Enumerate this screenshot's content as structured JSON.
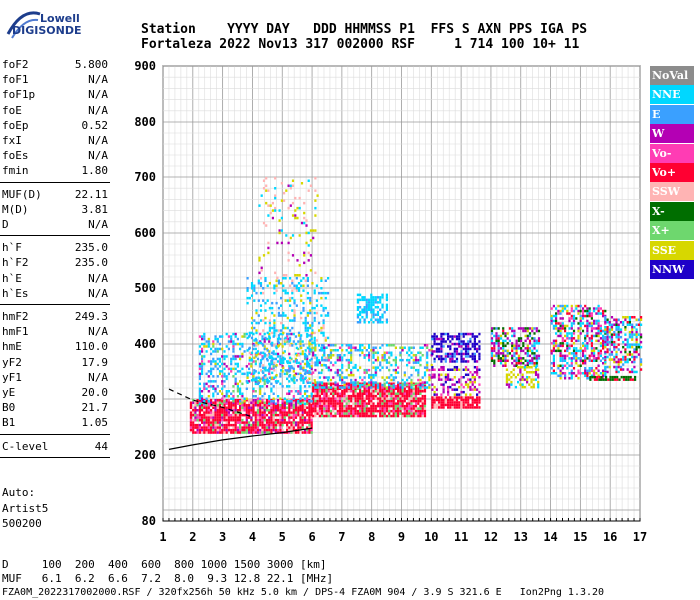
{
  "logo": {
    "top": "Lowell",
    "bottom": "DIGISONDE"
  },
  "header": {
    "row1": "Station    YYYY DAY   DDD HHMMSS P1  FFS S AXN PPS IGA PS",
    "row2": "Fortaleza 2022 Nov13 317 002000 RSF     1 714 100 10+ 11"
  },
  "params": {
    "group1": [
      {
        "name": "foF2",
        "value": "5.800"
      },
      {
        "name": "foF1",
        "value": "N/A"
      },
      {
        "name": "foF1p",
        "value": "N/A"
      },
      {
        "name": "foE",
        "value": "N/A"
      },
      {
        "name": "foEp",
        "value": "0.52"
      },
      {
        "name": "fxI",
        "value": "N/A"
      },
      {
        "name": "foEs",
        "value": "N/A"
      },
      {
        "name": "fmin",
        "value": "1.80"
      }
    ],
    "group2": [
      {
        "name": "MUF(D)",
        "value": "22.11"
      },
      {
        "name": "M(D)",
        "value": "3.81"
      },
      {
        "name": "D",
        "value": "N/A"
      }
    ],
    "group3": [
      {
        "name": "h`F",
        "value": "235.0"
      },
      {
        "name": "h`F2",
        "value": "235.0"
      },
      {
        "name": "h`E",
        "value": "N/A"
      },
      {
        "name": "h`Es",
        "value": "N/A"
      }
    ],
    "group4": [
      {
        "name": "hmF2",
        "value": "249.3"
      },
      {
        "name": "hmF1",
        "value": "N/A"
      },
      {
        "name": "hmE",
        "value": "110.0"
      },
      {
        "name": "yF2",
        "value": "17.9"
      },
      {
        "name": "yF1",
        "value": "N/A"
      },
      {
        "name": "yE",
        "value": "20.0"
      },
      {
        "name": "B0",
        "value": "21.7"
      },
      {
        "name": "B1",
        "value": "1.05"
      }
    ],
    "group5": [
      {
        "name": "C-level",
        "value": "44"
      }
    ]
  },
  "autoscale": {
    "line1": "Auto:",
    "line2": "Artist5",
    "line3": "500200"
  },
  "legend": [
    {
      "label": "NoVal",
      "color": "#8c8c8c"
    },
    {
      "label": "NNE",
      "color": "#00d7ff"
    },
    {
      "label": "E",
      "color": "#3aa0ff"
    },
    {
      "label": "W",
      "color": "#b400b4"
    },
    {
      "label": "Vo-",
      "color": "#ff3cb4"
    },
    {
      "label": "Vo+",
      "color": "#ff0032"
    },
    {
      "label": "SSW",
      "color": "#ffb4b4"
    },
    {
      "label": "X-",
      "color": "#006e00"
    },
    {
      "label": "X+",
      "color": "#6ed76e"
    },
    {
      "label": "SSE",
      "color": "#d7d700"
    },
    {
      "label": "NNW",
      "color": "#1e00c8"
    }
  ],
  "footer": {
    "d_row": "D     100  200  400  600  800 1000 1500 3000 [km]",
    "muf_row": "MUF   6.1  6.2  6.6  7.2  8.0  9.3 12.8 22.1 [MHz]",
    "file_row": "FZA0M_2022317002000.RSF / 320fx256h 50 kHz 5.0 km / DPS-4 FZA0M 904 / 3.9 S 321.6 E   Ion2Png 1.3.20"
  },
  "chart_data": {
    "type": "scatter",
    "title": "",
    "xlabel": "",
    "ylabel": "",
    "xlim": [
      1,
      17
    ],
    "ylim": [
      80,
      900
    ],
    "x_ticks": [
      "1",
      "2",
      "3",
      "4",
      "5",
      "6",
      "7",
      "8",
      "9",
      "10",
      "11",
      "12",
      "13",
      "14",
      "15",
      "16",
      "17"
    ],
    "y_ticks": [
      "80",
      "200",
      "300",
      "400",
      "500",
      "600",
      "700",
      "800",
      "900"
    ],
    "grid": true,
    "legend_position": "right",
    "clusters": [
      {
        "x_min": 1.9,
        "x_max": 6.0,
        "y_min": 240,
        "y_max": 300,
        "density": 0.9,
        "weights": {
          "Vo+": 6,
          "Vo-": 1,
          "SSW": 1,
          "W": 1,
          "X+": 1
        }
      },
      {
        "x_min": 6.0,
        "x_max": 9.8,
        "y_min": 270,
        "y_max": 330,
        "density": 0.9,
        "weights": {
          "Vo+": 6,
          "Vo-": 1,
          "SSW": 1,
          "X+": 1
        }
      },
      {
        "x_min": 10.0,
        "x_max": 11.6,
        "y_min": 285,
        "y_max": 305,
        "density": 0.9,
        "weights": {
          "Vo+": 6,
          "SSW": 1
        }
      },
      {
        "x_min": 2.2,
        "x_max": 6.0,
        "y_min": 290,
        "y_max": 420,
        "density": 0.35,
        "weights": {
          "E": 3,
          "NNE": 3,
          "W": 1,
          "X+": 1,
          "SSE": 1,
          "Vo-": 1
        }
      },
      {
        "x_min": 3.8,
        "x_max": 6.5,
        "y_min": 330,
        "y_max": 520,
        "density": 0.25,
        "weights": {
          "NNE": 4,
          "E": 2,
          "SSW": 1,
          "SSE": 1
        }
      },
      {
        "x_min": 4.2,
        "x_max": 6.2,
        "y_min": 520,
        "y_max": 700,
        "density": 0.1,
        "weights": {
          "SSE": 2,
          "SSW": 2,
          "W": 1,
          "NNE": 1
        }
      },
      {
        "x_min": 6.0,
        "x_max": 10.0,
        "y_min": 320,
        "y_max": 400,
        "density": 0.4,
        "weights": {
          "NNE": 3,
          "E": 2,
          "W": 1,
          "Vo-": 1,
          "X+": 1,
          "SSE": 1
        }
      },
      {
        "x_min": 7.5,
        "x_max": 8.5,
        "y_min": 440,
        "y_max": 490,
        "density": 0.55,
        "weights": {
          "NNE": 5,
          "E": 2
        }
      },
      {
        "x_min": 10.0,
        "x_max": 11.6,
        "y_min": 370,
        "y_max": 420,
        "density": 0.6,
        "weights": {
          "NNW": 5,
          "E": 1,
          "W": 1
        }
      },
      {
        "x_min": 10.0,
        "x_max": 11.6,
        "y_min": 310,
        "y_max": 360,
        "density": 0.4,
        "weights": {
          "W": 2,
          "Vo-": 1,
          "SSE": 1,
          "NNW": 1
        }
      },
      {
        "x_min": 12.0,
        "x_max": 13.6,
        "y_min": 360,
        "y_max": 430,
        "density": 0.55,
        "weights": {
          "X-": 2,
          "W": 2,
          "NNE": 1,
          "E": 1,
          "SSE": 1,
          "Vo+": 1
        }
      },
      {
        "x_min": 12.5,
        "x_max": 13.6,
        "y_min": 320,
        "y_max": 360,
        "density": 0.5,
        "weights": {
          "SSE": 3,
          "NNE": 1,
          "W": 1
        }
      },
      {
        "x_min": 14.0,
        "x_max": 15.8,
        "y_min": 340,
        "y_max": 470,
        "density": 0.5,
        "weights": {
          "W": 2,
          "NNE": 2,
          "E": 1,
          "Vo-": 1,
          "SSE": 1,
          "X-": 1,
          "Vo+": 1
        }
      },
      {
        "x_min": 15.8,
        "x_max": 17.0,
        "y_min": 350,
        "y_max": 450,
        "density": 0.5,
        "weights": {
          "NNE": 2,
          "E": 2,
          "W": 2,
          "X-": 1,
          "SSE": 1,
          "Vo+": 1
        }
      },
      {
        "x_min": 15.3,
        "x_max": 16.8,
        "y_min": 335,
        "y_max": 342,
        "density": 0.8,
        "weights": {
          "X-": 4,
          "Vo+": 1
        }
      }
    ],
    "profile_line": [
      [
        1.2,
        210
      ],
      [
        2,
        218
      ],
      [
        3,
        227
      ],
      [
        4,
        234
      ],
      [
        5,
        240
      ],
      [
        6,
        248
      ]
    ],
    "dashed_line": [
      [
        1.2,
        318
      ],
      [
        2,
        298
      ],
      [
        3,
        285
      ],
      [
        4,
        268
      ]
    ]
  }
}
